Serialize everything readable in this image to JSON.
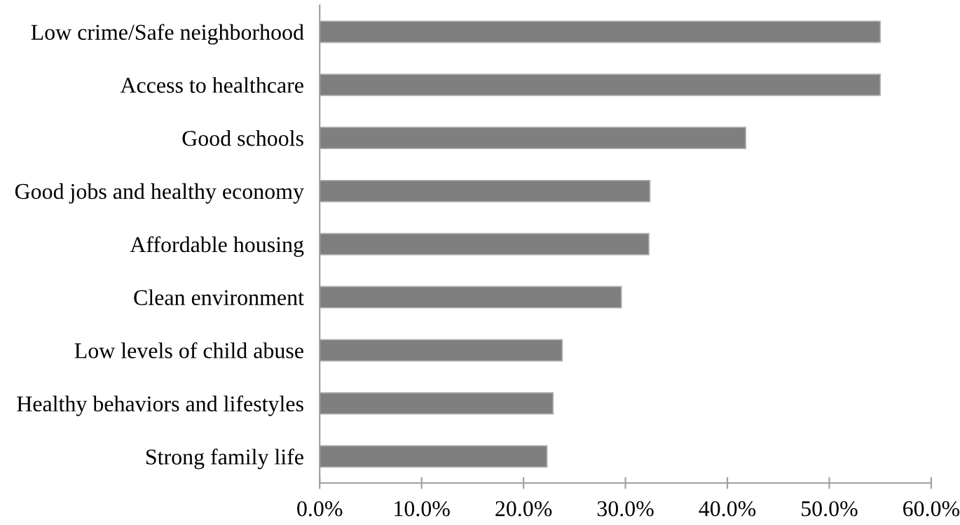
{
  "chart_data": {
    "type": "bar",
    "orientation": "horizontal",
    "categories": [
      "Low crime/Safe neighborhood",
      "Access to healthcare",
      "Good schools",
      "Good jobs and healthy economy",
      "Affordable housing",
      "Clean environment",
      "Low levels of child abuse",
      "Healthy behaviors and lifestyles",
      "Strong family life"
    ],
    "values": [
      55.0,
      55.0,
      41.8,
      32.4,
      32.3,
      29.6,
      23.8,
      22.9,
      22.3
    ],
    "color": "#7f7f7f",
    "xlim": [
      0,
      60
    ],
    "xticks": [
      {
        "value": 0,
        "label": "0.0%"
      },
      {
        "value": 10,
        "label": "10.0%"
      },
      {
        "value": 20,
        "label": "20.0%"
      },
      {
        "value": 30,
        "label": "30.0%"
      },
      {
        "value": 40,
        "label": "40.0%"
      },
      {
        "value": 50,
        "label": "50.0%"
      },
      {
        "value": 60,
        "label": "60.0%"
      }
    ],
    "grid": false,
    "legend": false
  }
}
